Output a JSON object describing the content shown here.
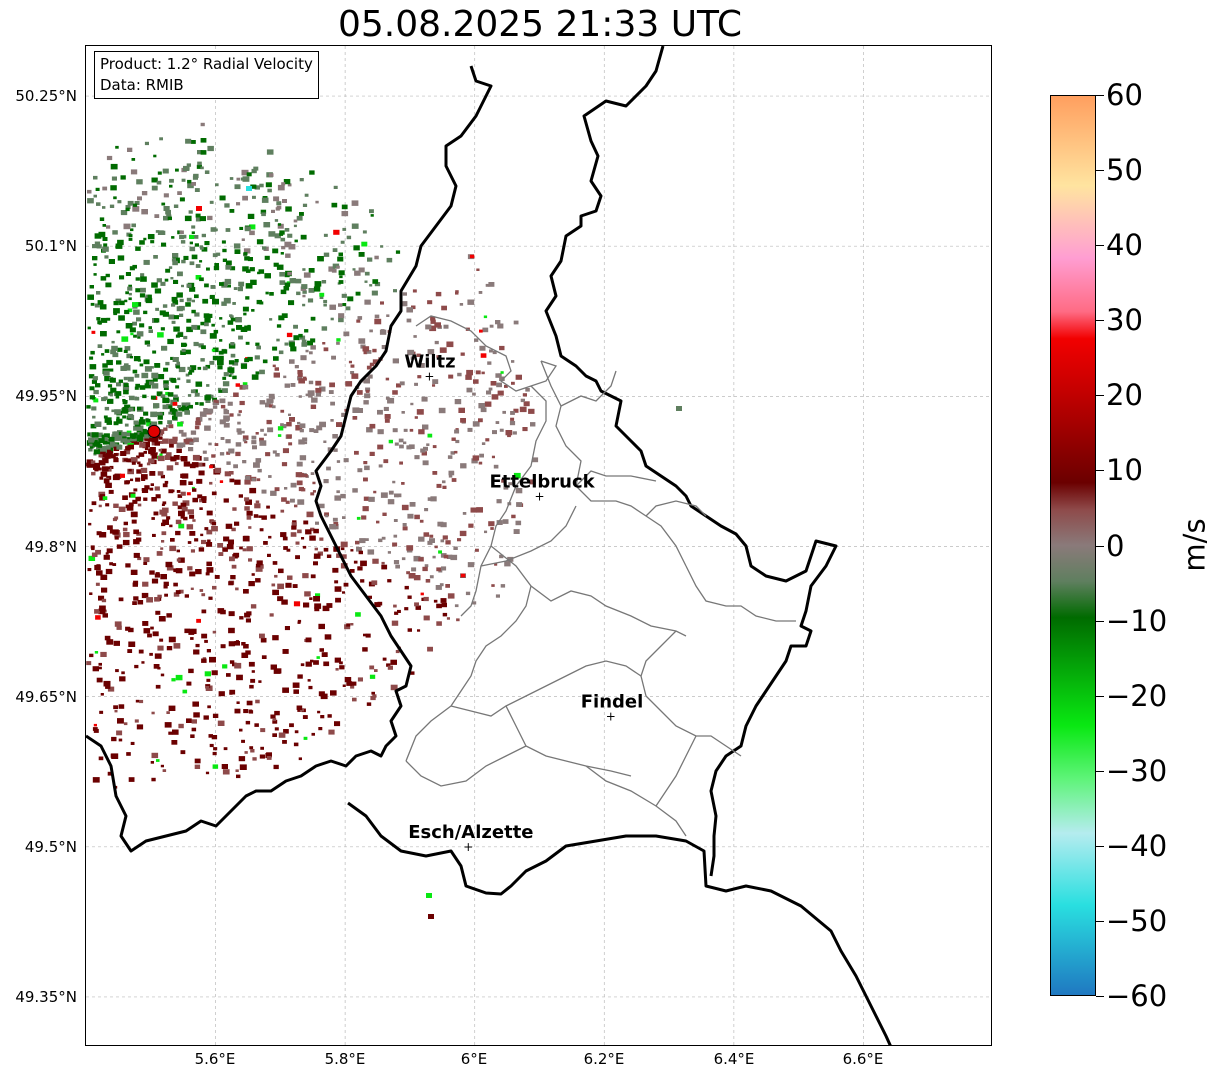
{
  "title": "05.08.2025 21:33 UTC",
  "info": {
    "product": "Product: 1.2° Radial Velocity",
    "data": "Data: RMIB"
  },
  "axes": {
    "lat_labels": [
      "50.25°N",
      "50.1°N",
      "49.95°N",
      "49.8°N",
      "49.65°N",
      "49.5°N",
      "49.35°N"
    ],
    "lon_labels": [
      "5.6°E",
      "5.8°E",
      "6°E",
      "6.2°E",
      "6.4°E",
      "6.6°E"
    ]
  },
  "cities": [
    {
      "name": "Wiltz",
      "lon": 5.93,
      "lat": 49.97
    },
    {
      "name": "Ettelbruck",
      "lon": 6.1,
      "lat": 49.85
    },
    {
      "name": "Findel",
      "lon": 6.21,
      "lat": 49.63
    },
    {
      "name": "Esch/Alzette",
      "lon": 5.99,
      "lat": 49.5
    }
  ],
  "radar": {
    "lon": 5.505,
    "lat": 49.915
  },
  "colorbar": {
    "unit": "m/s",
    "min": -60,
    "max": 60,
    "tick_labels": [
      "60",
      "50",
      "40",
      "30",
      "20",
      "10",
      "0",
      "−10",
      "−20",
      "−30",
      "−40",
      "−50",
      "−60"
    ],
    "colors": {
      "neg_60": "#1f78c1",
      "neg_50": "#29dfe0",
      "neg_40": "#b5ecef",
      "neg_32": "#5ff47a",
      "neg_25": "#09e812",
      "neg_10": "#006b00",
      "neg_5": "#5f7f5f",
      "zero": "#8a7a7a",
      "pos_5": "#8e4a4a",
      "pos_10": "#6b0000",
      "pos_20": "#c30000",
      "pos_28": "#f20000",
      "pos_35": "#ff6b84",
      "pos_42": "#ff9ed2",
      "pos_50": "#ffe4a0",
      "pos_60": "#ff9f5f"
    }
  }
}
